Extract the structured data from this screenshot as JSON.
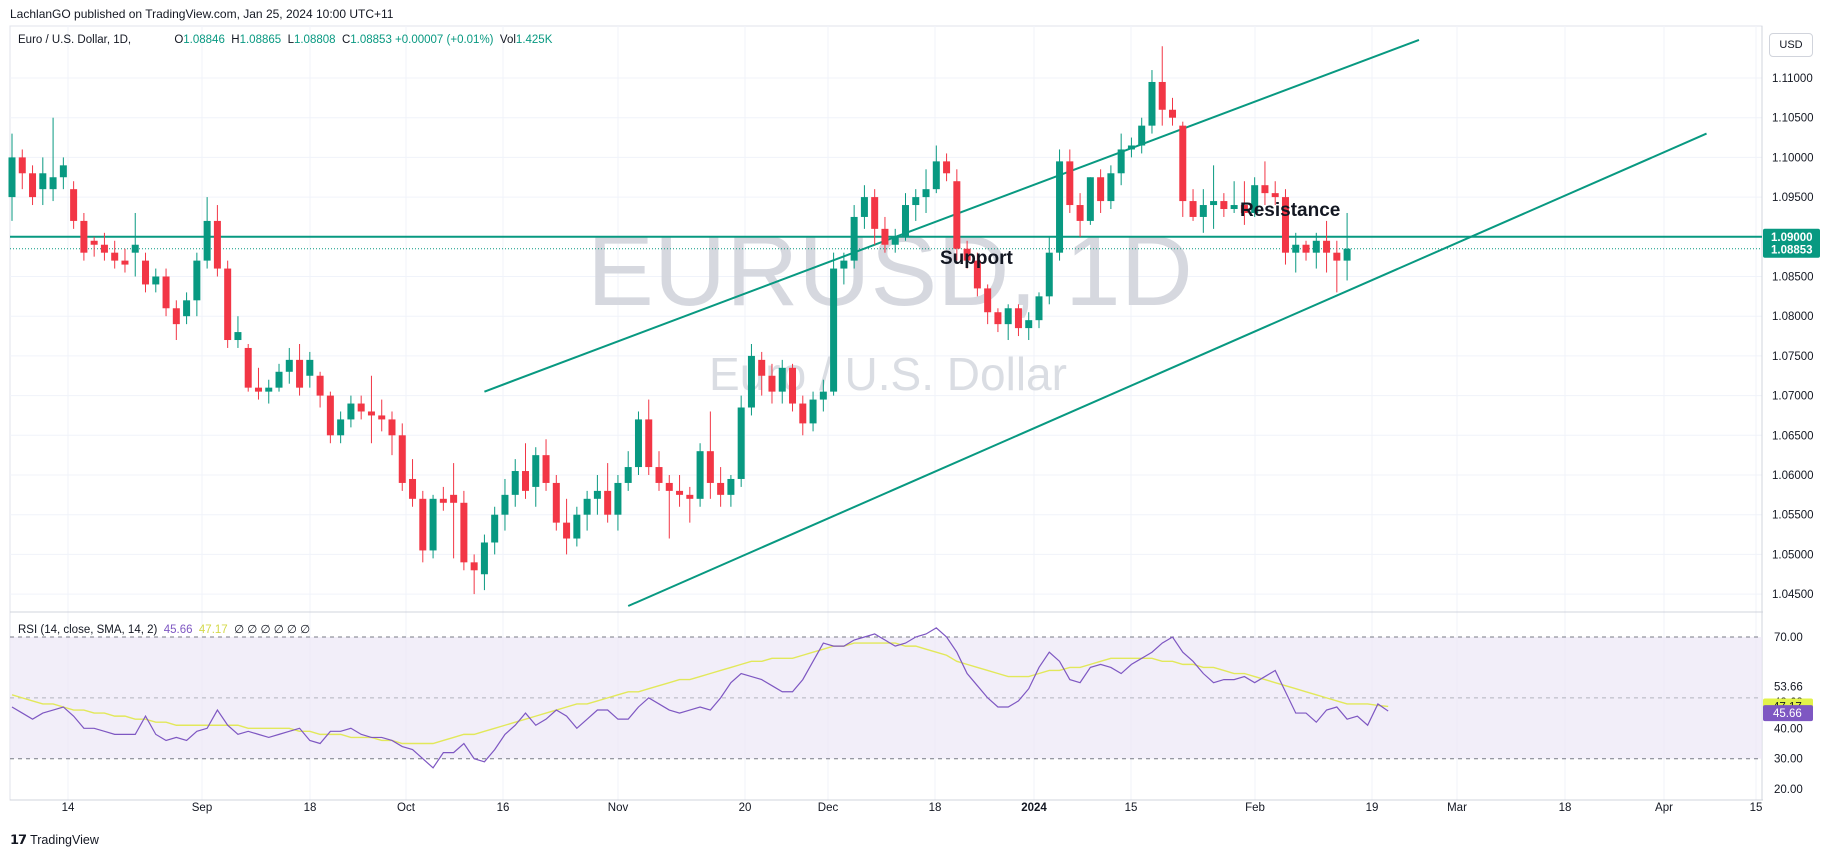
{
  "header": {
    "publisher": "LachlanGO published on TradingView.com, Jan 25, 2024 10:00 UTC+11"
  },
  "legend": {
    "symbol": "Euro / U.S. Dollar, 1D,",
    "ohlc": [
      {
        "label": "O",
        "value": "1.08846"
      },
      {
        "label": "H",
        "value": "1.08865"
      },
      {
        "label": "L",
        "value": "1.08808"
      },
      {
        "label": "C",
        "value": "1.08853"
      }
    ],
    "change": "+0.00007 (+0.01%)",
    "vol_label": "Vol",
    "vol_value": "1.425K"
  },
  "currency_button": "USD",
  "watermark": {
    "ticker": "EURUSD, 1D",
    "name": "Euro / U.S. Dollar"
  },
  "annotations": {
    "resistance": "Resistance",
    "support": "Support"
  },
  "colors": {
    "up": "#089981",
    "down": "#f23645",
    "line": "#089981",
    "rsi": "#7e57c2",
    "rsi_sma": "#e2e85a",
    "rsi_band": "#ede7f6"
  },
  "price_badges": {
    "level": "1.09000",
    "last": "1.08853"
  },
  "rsi": {
    "legend_label": "RSI (14, close, SMA, 14, 2)",
    "rsi_value": "45.66",
    "sma_value": "47.17",
    "extra": "∅ ∅ ∅ ∅ ∅ ∅",
    "badges": {
      "sma": "47.17",
      "rsi": "45.66"
    }
  },
  "footer": {
    "logo": "𝟭𝟳",
    "brand": "TradingView"
  },
  "chart_data": {
    "type": "candlestick",
    "title": "Euro / U.S. Dollar, 1D",
    "price_axis": {
      "ticks": [
        "1.11000",
        "1.10500",
        "1.10000",
        "1.09500",
        "1.09000",
        "1.08500",
        "1.08000",
        "1.07500",
        "1.07000",
        "1.06500",
        "1.06000",
        "1.05500",
        "1.05000",
        "1.04500"
      ],
      "ylim": [
        1.0425,
        1.114
      ]
    },
    "time_axis": {
      "ticks": [
        "14",
        "Sep",
        "18",
        "Oct",
        "16",
        "Nov",
        "20",
        "Dec",
        "18",
        "2024",
        "15",
        "Feb",
        "19",
        "Mar",
        "18",
        "Apr",
        "15"
      ]
    },
    "horizontal_level": 1.09,
    "channel_upper": [
      {
        "bar": 46,
        "price": 1.0705
      },
      {
        "bar": 137,
        "price": 1.1148
      }
    ],
    "channel_lower": [
      {
        "bar": 60,
        "price": 1.0435
      },
      {
        "bar": 165,
        "price": 1.103
      }
    ],
    "candles": [
      [
        1.095,
        1.103,
        1.092,
        1.1
      ],
      [
        1.1,
        1.101,
        1.096,
        1.098
      ],
      [
        1.098,
        1.099,
        1.094,
        1.095
      ],
      [
        1.096,
        1.1,
        1.094,
        1.098
      ],
      [
        1.096,
        1.105,
        1.0945,
        1.0975
      ],
      [
        1.0975,
        1.1,
        1.096,
        1.099
      ],
      [
        1.096,
        1.097,
        1.091,
        1.092
      ],
      [
        1.092,
        1.093,
        1.087,
        1.088
      ],
      [
        1.0895,
        1.09,
        1.0875,
        1.089
      ],
      [
        1.089,
        1.0905,
        1.087,
        1.088
      ],
      [
        1.088,
        1.0895,
        1.086,
        1.087
      ],
      [
        1.087,
        1.0885,
        1.0855,
        1.0865
      ],
      [
        1.088,
        1.093,
        1.085,
        1.089
      ],
      [
        1.087,
        1.088,
        1.083,
        1.084
      ],
      [
        1.084,
        1.086,
        1.083,
        1.085
      ],
      [
        1.085,
        1.086,
        1.08,
        1.081
      ],
      [
        1.081,
        1.082,
        1.077,
        1.079
      ],
      [
        1.08,
        1.083,
        1.079,
        1.082
      ],
      [
        1.082,
        1.088,
        1.08,
        1.087
      ],
      [
        1.087,
        1.095,
        1.086,
        1.092
      ],
      [
        1.092,
        1.094,
        1.085,
        1.086
      ],
      [
        1.086,
        1.087,
        1.076,
        1.077
      ],
      [
        1.077,
        1.08,
        1.076,
        1.078
      ],
      [
        1.076,
        1.0765,
        1.0705,
        1.071
      ],
      [
        1.071,
        1.0735,
        1.0695,
        1.0705
      ],
      [
        1.0705,
        1.072,
        1.069,
        1.071
      ],
      [
        1.071,
        1.074,
        1.0705,
        1.073
      ],
      [
        1.073,
        1.076,
        1.0715,
        1.0745
      ],
      [
        1.0745,
        1.0765,
        1.07,
        1.071
      ],
      [
        1.0725,
        1.0755,
        1.071,
        1.0745
      ],
      [
        1.0725,
        1.073,
        1.0685,
        1.07
      ],
      [
        1.07,
        1.0705,
        1.064,
        1.065
      ],
      [
        1.065,
        1.068,
        1.064,
        1.067
      ],
      [
        1.067,
        1.07,
        1.066,
        1.069
      ],
      [
        1.069,
        1.07,
        1.067,
        1.068
      ],
      [
        1.068,
        1.0725,
        1.064,
        1.0675
      ],
      [
        1.0675,
        1.0695,
        1.0655,
        1.067
      ],
      [
        1.067,
        1.068,
        1.0625,
        1.065
      ],
      [
        1.065,
        1.0665,
        1.058,
        1.059
      ],
      [
        1.0595,
        1.062,
        1.056,
        1.057
      ],
      [
        1.057,
        1.058,
        1.049,
        1.0505
      ],
      [
        1.0505,
        1.0575,
        1.0495,
        1.057
      ],
      [
        1.057,
        1.0585,
        1.0555,
        1.0565
      ],
      [
        1.0575,
        1.0615,
        1.0495,
        1.0565
      ],
      [
        1.0565,
        1.058,
        1.048,
        1.049
      ],
      [
        1.049,
        1.05,
        1.045,
        1.048
      ],
      [
        1.0475,
        1.0525,
        1.0455,
        1.0515
      ],
      [
        1.0515,
        1.056,
        1.05,
        1.055
      ],
      [
        1.055,
        1.0595,
        1.053,
        1.0575
      ],
      [
        1.0575,
        1.062,
        1.056,
        1.0605
      ],
      [
        1.0605,
        1.064,
        1.057,
        1.058
      ],
      [
        1.0585,
        1.0635,
        1.056,
        1.0625
      ],
      [
        1.0625,
        1.0645,
        1.058,
        1.059
      ],
      [
        1.059,
        1.06,
        1.053,
        1.054
      ],
      [
        1.054,
        1.057,
        1.05,
        1.052
      ],
      [
        1.052,
        1.056,
        1.051,
        1.055
      ],
      [
        1.055,
        1.058,
        1.053,
        1.057
      ],
      [
        1.057,
        1.06,
        1.055,
        1.058
      ],
      [
        1.058,
        1.0615,
        1.054,
        1.055
      ],
      [
        1.055,
        1.06,
        1.053,
        1.059
      ],
      [
        1.059,
        1.063,
        1.058,
        1.061
      ],
      [
        1.061,
        1.068,
        1.06,
        1.067
      ],
      [
        1.067,
        1.0695,
        1.06,
        1.061
      ],
      [
        1.061,
        1.063,
        1.058,
        1.059
      ],
      [
        1.059,
        1.06,
        1.052,
        1.058
      ],
      [
        1.058,
        1.06,
        1.056,
        1.0575
      ],
      [
        1.0575,
        1.0585,
        1.054,
        1.057
      ],
      [
        1.057,
        1.064,
        1.056,
        1.063
      ],
      [
        1.063,
        1.068,
        1.057,
        1.059
      ],
      [
        1.059,
        1.061,
        1.056,
        1.0575
      ],
      [
        1.0575,
        1.06,
        1.056,
        1.0595
      ],
      [
        1.0595,
        1.07,
        1.0585,
        1.0685
      ],
      [
        1.0685,
        1.0765,
        1.0675,
        1.075
      ],
      [
        1.0745,
        1.0755,
        1.07,
        1.0725
      ],
      [
        1.0725,
        1.074,
        1.069,
        1.0705
      ],
      [
        1.0705,
        1.0745,
        1.069,
        1.0735
      ],
      [
        1.0735,
        1.074,
        1.068,
        1.069
      ],
      [
        1.069,
        1.07,
        1.065,
        1.0665
      ],
      [
        1.0665,
        1.0705,
        1.0655,
        1.0695
      ],
      [
        1.0695,
        1.072,
        1.068,
        1.0705
      ],
      [
        1.0705,
        1.088,
        1.07,
        1.086
      ],
      [
        1.086,
        1.088,
        1.084,
        1.087
      ],
      [
        1.087,
        1.094,
        1.086,
        1.0925
      ],
      [
        1.0925,
        1.0965,
        1.091,
        1.095
      ],
      [
        1.095,
        1.096,
        1.089,
        1.091
      ],
      [
        1.091,
        1.0925,
        1.088,
        1.089
      ],
      [
        1.089,
        1.091,
        1.088,
        1.09
      ],
      [
        1.09,
        1.0955,
        1.0895,
        1.094
      ],
      [
        1.094,
        1.096,
        1.092,
        1.095
      ],
      [
        1.095,
        1.0985,
        1.093,
        1.096
      ],
      [
        1.096,
        1.1015,
        1.0955,
        1.0995
      ],
      [
        1.0995,
        1.1005,
        1.097,
        1.098
      ],
      [
        1.097,
        1.0985,
        1.087,
        1.0885
      ],
      [
        1.0885,
        1.0895,
        1.086,
        1.087
      ],
      [
        1.087,
        1.088,
        1.0825,
        1.0835
      ],
      [
        1.0835,
        1.084,
        1.079,
        1.0805
      ],
      [
        1.0805,
        1.081,
        1.078,
        1.079
      ],
      [
        1.079,
        1.0815,
        1.077,
        1.081
      ],
      [
        1.081,
        1.0815,
        1.0775,
        1.0785
      ],
      [
        1.0785,
        1.0805,
        1.077,
        1.0795
      ],
      [
        1.0795,
        1.083,
        1.0785,
        1.0825
      ],
      [
        1.0825,
        1.09,
        1.0815,
        1.088
      ],
      [
        1.088,
        1.101,
        1.087,
        1.0995
      ],
      [
        1.0995,
        1.101,
        1.093,
        1.094
      ],
      [
        1.094,
        1.0955,
        1.09,
        1.092
      ],
      [
        1.092,
        1.0975,
        1.0915,
        1.0975
      ],
      [
        1.0975,
        1.0985,
        1.093,
        1.0945
      ],
      [
        1.0945,
        1.099,
        1.0935,
        1.098
      ],
      [
        1.098,
        1.103,
        1.0965,
        1.101
      ],
      [
        1.101,
        1.1025,
        1.1,
        1.1015
      ],
      [
        1.1015,
        1.105,
        1.1005,
        1.104
      ],
      [
        1.104,
        1.111,
        1.103,
        1.1095
      ],
      [
        1.1095,
        1.114,
        1.104,
        1.106
      ],
      [
        1.106,
        1.1075,
        1.104,
        1.105
      ],
      [
        1.104,
        1.1045,
        1.0925,
        1.0945
      ],
      [
        1.0945,
        1.096,
        1.092,
        1.0925
      ],
      [
        1.0925,
        1.096,
        1.0905,
        1.094
      ],
      [
        1.094,
        1.099,
        1.091,
        1.0945
      ],
      [
        1.0945,
        1.0955,
        1.0925,
        1.0935
      ],
      [
        1.0935,
        1.097,
        1.093,
        1.094
      ],
      [
        1.094,
        1.097,
        1.0915,
        1.093
      ],
      [
        1.093,
        1.0975,
        1.0925,
        1.0965
      ],
      [
        1.0965,
        1.0995,
        1.094,
        1.0955
      ],
      [
        1.0955,
        1.097,
        1.094,
        1.095
      ],
      [
        1.095,
        1.096,
        1.0865,
        1.088
      ],
      [
        1.088,
        1.0905,
        1.0855,
        1.089
      ],
      [
        1.089,
        1.0895,
        1.087,
        1.088
      ],
      [
        1.088,
        1.0905,
        1.086,
        1.0895
      ],
      [
        1.0895,
        1.092,
        1.0855,
        1.088
      ],
      [
        1.088,
        1.0895,
        1.083,
        1.087
      ],
      [
        1.087,
        1.093,
        1.0845,
        1.0885
      ]
    ],
    "rsi_axis": {
      "ticks": [
        "70.00",
        "53.66",
        "48.68",
        "40.00",
        "30.00",
        "20.00"
      ],
      "ylim": [
        20,
        73
      ],
      "band": [
        30,
        70
      ],
      "mid": 50
    },
    "rsi_series": [
      {
        "name": "RSI",
        "values": [
          47,
          45,
          43,
          45,
          46,
          47,
          44,
          40,
          40,
          39,
          38,
          38,
          38,
          44,
          38,
          36,
          37,
          36,
          39,
          40,
          46,
          41,
          38,
          39,
          38,
          37,
          38,
          39,
          40,
          36,
          35,
          39,
          39,
          40,
          38,
          37,
          37,
          36,
          34,
          33,
          30,
          27,
          32,
          32,
          35,
          30,
          29,
          33,
          38,
          41,
          45,
          41,
          43,
          46,
          44,
          40,
          43,
          46,
          46,
          43,
          43,
          47,
          50,
          48,
          46,
          45,
          46,
          47,
          46,
          50,
          55,
          58,
          57,
          56,
          54,
          52,
          52,
          56,
          62,
          68,
          67,
          67,
          69,
          70,
          71,
          69,
          67,
          68,
          70,
          71,
          73,
          70,
          65,
          58,
          54,
          50,
          47,
          47,
          49,
          53,
          60,
          65,
          62,
          56,
          55,
          60,
          61,
          60,
          58,
          61,
          63,
          65,
          68,
          70,
          65,
          62,
          58,
          55,
          56,
          56,
          57,
          55,
          57,
          59,
          52,
          45,
          45,
          42,
          46,
          47,
          43,
          44,
          41,
          48,
          45.66
        ]
      },
      {
        "name": "SMA",
        "values": [
          51,
          50,
          49,
          48,
          48,
          47,
          46,
          46,
          45,
          45,
          44,
          44,
          43,
          43,
          42,
          42,
          41,
          41,
          41,
          41,
          41,
          41,
          41,
          40,
          40,
          40,
          40,
          40,
          39,
          39,
          38,
          38,
          38,
          37,
          37,
          37,
          36,
          36,
          35,
          35,
          35,
          35,
          36,
          37,
          38,
          38,
          39,
          40,
          41,
          42,
          43,
          44,
          45,
          46,
          47,
          48,
          48,
          49,
          50,
          51,
          52,
          52,
          53,
          54,
          55,
          56,
          56,
          57,
          58,
          59,
          60,
          61,
          62,
          62,
          63,
          63,
          63,
          64,
          65,
          66,
          67,
          67,
          68,
          68,
          68,
          68,
          68,
          67,
          67,
          66,
          65,
          64,
          62,
          61,
          60,
          59,
          58,
          57,
          57,
          57,
          58,
          59,
          59,
          60,
          60,
          61,
          62,
          63,
          63,
          63,
          63,
          63,
          62,
          62,
          61,
          61,
          60,
          60,
          59,
          58,
          58,
          57,
          56,
          55,
          54,
          53,
          52,
          51,
          50,
          49,
          48,
          48,
          48,
          47.5,
          47.17
        ]
      }
    ]
  }
}
